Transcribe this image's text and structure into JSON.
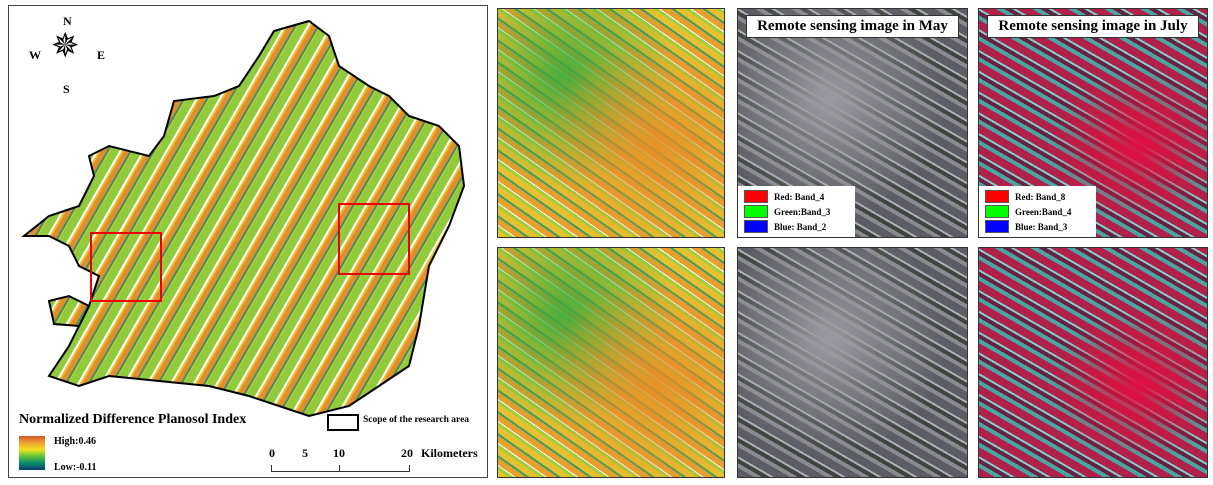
{
  "main_map": {
    "compass": {
      "n": "N",
      "s": "S",
      "e": "E",
      "w": "W"
    },
    "legend_title": "Normalized Difference Planosol Index",
    "high_label": "High:0.46",
    "low_label": "Low:-0.11",
    "scope_label": "Scope of the research area",
    "scale": {
      "ticks": [
        "0",
        "5",
        "10",
        "20"
      ],
      "unit": "Kilometers"
    },
    "ramp_colors": [
      "#d0562a",
      "#f0a030",
      "#f4e020",
      "#5ac43a",
      "#0a8a6a",
      "#0a3a7a"
    ]
  },
  "may": {
    "title": "Remote sensing image in May",
    "bands": [
      {
        "label": "Red:   Band_4",
        "color": "#ff0000"
      },
      {
        "label": "Green:Band_3",
        "color": "#00ff00"
      },
      {
        "label": "Blue:  Band_2",
        "color": "#0000ff"
      }
    ]
  },
  "july": {
    "title": "Remote sensing image in July",
    "bands": [
      {
        "label": "Red:   Band_8",
        "color": "#ff0000"
      },
      {
        "label": "Green:Band_4",
        "color": "#00ff00"
      },
      {
        "label": "Blue:  Band_3",
        "color": "#0000ff"
      }
    ]
  }
}
